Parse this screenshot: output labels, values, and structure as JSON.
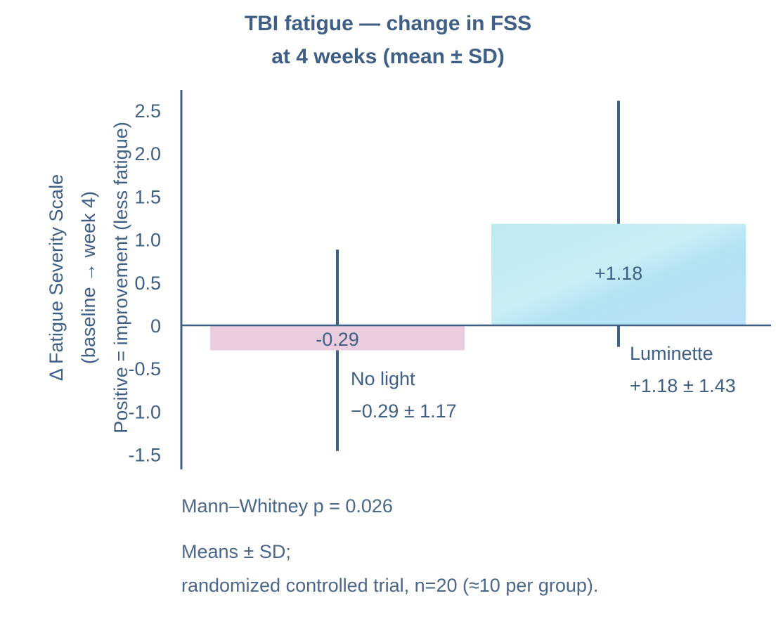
{
  "chart_data": {
    "type": "bar",
    "title": [
      "TBI fatigue — change in FSS",
      "at 4 weeks (mean ± SD)"
    ],
    "ylabel": [
      "Δ Fatigue Severity Scale",
      "(baseline → week 4)",
      "Positive = improvement (less fatigue)"
    ],
    "xlabel": "",
    "ylim": [
      -1.7,
      2.74
    ],
    "yticks": [
      2.5,
      2.0,
      1.5,
      1.0,
      0.5,
      0,
      -0.5,
      -1.0,
      -1.5
    ],
    "ytick_labels": [
      "2.5",
      "2.0",
      "1.5",
      "1.0",
      "0.5",
      "0",
      "-0.5",
      "-1.0",
      "-1.5"
    ],
    "grid": false,
    "categories": [
      "No light",
      "Luminette"
    ],
    "values": [
      -0.29,
      1.18
    ],
    "errors_sd": [
      1.17,
      1.43
    ],
    "value_labels": [
      "-0.29",
      "+1.18"
    ],
    "summary_labels": [
      "−0.29 ± 1.17",
      "+1.18 ± 1.43"
    ],
    "colors": [
      "#ebcde0",
      "#b6e4f2"
    ],
    "axis_color": "#3f5f84",
    "annotations": [
      "Mann–Whitney p = 0.026",
      "Means ± SD;",
      "randomized controlled trial, n=20 (≈10 per group)."
    ]
  }
}
